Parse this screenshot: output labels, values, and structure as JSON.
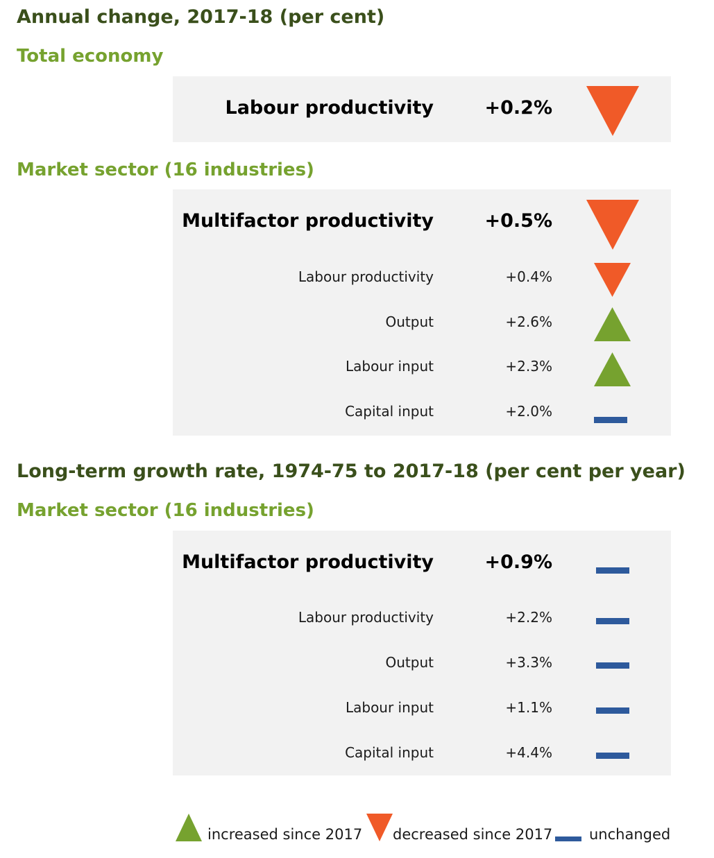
{
  "colors": {
    "up": "#76a22f",
    "down": "#f05a28",
    "flat": "#2e5a9c"
  },
  "annual": {
    "title": "Annual change, 2017-18 (per cent)",
    "total_economy": {
      "heading": "Total economy",
      "rows": [
        {
          "label": "Labour productivity",
          "value": "+0.2%",
          "trend": "down-icon"
        }
      ]
    },
    "market_sector": {
      "heading": "Market sector (16 industries)",
      "rows": [
        {
          "label": "Multifactor productivity",
          "value": "+0.5%",
          "trend": "down-icon"
        },
        {
          "label": "Labour productivity",
          "value": "+0.4%",
          "trend": "down-icon"
        },
        {
          "label": "Output",
          "value": "+2.6%",
          "trend": "up-icon"
        },
        {
          "label": "Labour input",
          "value": "+2.3%",
          "trend": "up-icon"
        },
        {
          "label": "Capital input",
          "value": "+2.0%",
          "trend": "unchanged-icon"
        }
      ]
    }
  },
  "longterm": {
    "title": "Long-term growth rate, 1974-75 to 2017-18 (per cent per year)",
    "market_sector": {
      "heading": "Market sector (16 industries)",
      "rows": [
        {
          "label": "Multifactor productivity",
          "value": "+0.9%",
          "trend": "unchanged-icon"
        },
        {
          "label": "Labour productivity",
          "value": "+2.2%",
          "trend": "unchanged-icon"
        },
        {
          "label": "Output",
          "value": "+3.3%",
          "trend": "unchanged-icon"
        },
        {
          "label": "Labour input",
          "value": "+1.1%",
          "trend": "unchanged-icon"
        },
        {
          "label": "Capital input",
          "value": "+4.4%",
          "trend": "unchanged-icon"
        }
      ]
    }
  },
  "legend": {
    "increased": "increased since 2017",
    "decreased": "decreased since 2017",
    "unchanged": "unchanged"
  }
}
